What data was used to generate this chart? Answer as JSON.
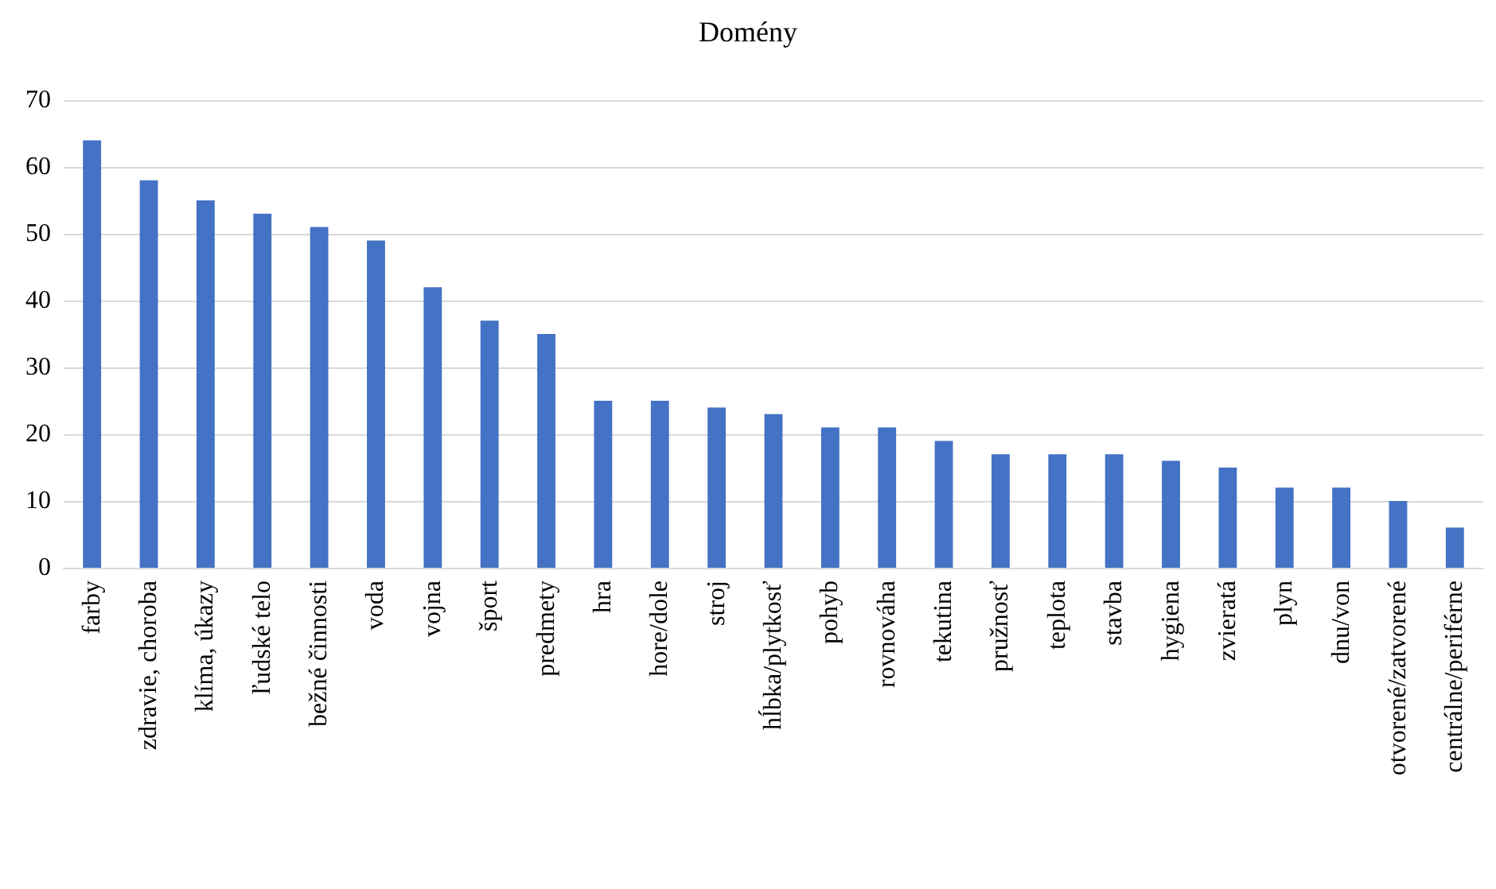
{
  "chart_data": {
    "type": "bar",
    "title": "Domény",
    "categories": [
      "farby",
      "zdravie, choroba",
      "klíma, úkazy",
      "ľudské telo",
      "bežné činnosti",
      "voda",
      "vojna",
      "šport",
      "predmety",
      "hra",
      "hore/dole",
      "stroj",
      "hĺbka/plytkosť",
      "pohyb",
      "rovnováha",
      "tekutina",
      "pružnosť",
      "teplota",
      "stavba",
      "hygiena",
      "zvieratá",
      "plyn",
      "dnu/von",
      "otvorené/zatvorené",
      "centrálne/periférne"
    ],
    "values": [
      64,
      58,
      55,
      53,
      51,
      49,
      42,
      37,
      35,
      25,
      25,
      24,
      23,
      21,
      21,
      19,
      17,
      17,
      17,
      16,
      15,
      12,
      12,
      10,
      6
    ],
    "color": "#4472c4",
    "ylim": [
      0,
      70
    ],
    "yticks": [
      0,
      10,
      20,
      30,
      40,
      50,
      60,
      70
    ],
    "grid": "y"
  }
}
